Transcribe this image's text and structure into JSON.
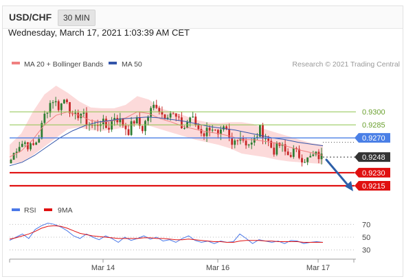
{
  "header": {
    "symbol": "USD/CHF",
    "timeframe": "30 MIN",
    "datetime": "Wednesday, March 17, 2021 1:03:39 AM CET"
  },
  "legend": {
    "ma20_label": "MA 20 + Bollinger Bands",
    "ma50_label": "MA 50",
    "credit": "Research © 2021 Trading Central",
    "rsi_label": "RSI",
    "nine_ma_label": "9MA"
  },
  "colors": {
    "up_candle": "#2e7d32",
    "down_candle": "#c62828",
    "bollinger_fill": "#fbd3d3",
    "ma20": "#f08080",
    "ma50": "#3355aa",
    "resistance": "#8bc34a",
    "pivot": "#4a7fe6",
    "support": "#e01010",
    "current": "#333333",
    "rsi": "#4a78e8",
    "nine_ma": "#e01010",
    "arrow": "#2d5fa8"
  },
  "chart_data": [
    {
      "type": "candlestick",
      "x_tick_labels": [
        "Mar 14",
        "Mar 16",
        "Mar 17"
      ],
      "ylim": [
        0.92,
        0.9345
      ],
      "price_levels": [
        {
          "role": "resistance",
          "value": 0.93,
          "label": "0.9300"
        },
        {
          "role": "resistance",
          "value": 0.9285,
          "label": "0.9285"
        },
        {
          "role": "pivot",
          "value": 0.927,
          "label": "0.9270"
        },
        {
          "role": "current",
          "value": 0.9248,
          "label": "0.9248"
        },
        {
          "role": "support",
          "value": 0.923,
          "label": "0.9230"
        },
        {
          "role": "support",
          "value": 0.9215,
          "label": "0.9215"
        }
      ],
      "close_path": [
        0.9245,
        0.9262,
        0.9265,
        0.9258,
        0.927,
        0.93,
        0.9315,
        0.9305,
        0.9318,
        0.929,
        0.93,
        0.9288,
        0.9282,
        0.929,
        0.928,
        0.9295,
        0.9288,
        0.9278,
        0.9292,
        0.928,
        0.9298,
        0.931,
        0.9296,
        0.93,
        0.9292,
        0.928,
        0.9295,
        0.9282,
        0.9275,
        0.9285,
        0.927,
        0.928,
        0.926,
        0.9275,
        0.9265,
        0.9262,
        0.928,
        0.927,
        0.9255,
        0.9262,
        0.925,
        0.9255,
        0.9248,
        0.9245,
        0.925,
        0.9248
      ],
      "ma20": [
        0.9248,
        0.9255,
        0.9268,
        0.9285,
        0.9296,
        0.93,
        0.9296,
        0.929,
        0.9288,
        0.929,
        0.9293,
        0.93,
        0.9298,
        0.9292,
        0.9288,
        0.9283,
        0.928,
        0.9277,
        0.9275,
        0.9272,
        0.9268,
        0.9268,
        0.9266,
        0.9264,
        0.926,
        0.9256,
        0.9253,
        0.925
      ],
      "bollinger_upper": [
        0.9262,
        0.9275,
        0.93,
        0.932,
        0.933,
        0.9322,
        0.9312,
        0.9305,
        0.9304,
        0.9304,
        0.9308,
        0.9318,
        0.9314,
        0.9304,
        0.93,
        0.9296,
        0.9291,
        0.9288,
        0.9287,
        0.9288,
        0.9288,
        0.9286,
        0.928,
        0.9276,
        0.9272,
        0.9268,
        0.9264,
        0.9262
      ],
      "bollinger_lower": [
        0.924,
        0.9242,
        0.925,
        0.926,
        0.927,
        0.928,
        0.9282,
        0.9279,
        0.9278,
        0.928,
        0.9282,
        0.9285,
        0.9284,
        0.928,
        0.9276,
        0.9272,
        0.9268,
        0.9265,
        0.9262,
        0.9258,
        0.9252,
        0.925,
        0.9248,
        0.9245,
        0.9243,
        0.9242,
        0.9241,
        0.924
      ],
      "ma50": [
        0.9238,
        0.9242,
        0.925,
        0.926,
        0.927,
        0.9278,
        0.9284,
        0.9288,
        0.929,
        0.9292,
        0.9293,
        0.9294,
        0.9293,
        0.9291,
        0.9289,
        0.9286,
        0.9283,
        0.9281,
        0.9279,
        0.9276,
        0.9273,
        0.927,
        0.9268,
        0.9265,
        0.9263,
        0.9261
      ]
    },
    {
      "type": "line",
      "title": "RSI",
      "ylim": [
        20,
        80
      ],
      "y_ticks": [
        70,
        50,
        30
      ],
      "series": [
        {
          "name": "RSI",
          "values": [
            45,
            50,
            55,
            48,
            62,
            68,
            72,
            70,
            66,
            60,
            52,
            48,
            55,
            50,
            46,
            52,
            48,
            42,
            50,
            45,
            48,
            52,
            47,
            50,
            44,
            46,
            42,
            48,
            52,
            45,
            42,
            44,
            40,
            44,
            42,
            43,
            55,
            48,
            40,
            46,
            44,
            42,
            44,
            40,
            45,
            44,
            40,
            42,
            43,
            42
          ]
        },
        {
          "name": "9MA",
          "values": [
            47,
            49,
            52,
            55,
            59,
            64,
            67,
            68,
            67,
            64,
            60,
            56,
            54,
            52,
            51,
            50,
            49,
            48,
            48,
            48,
            48,
            49,
            49,
            48,
            48,
            47,
            46,
            46,
            47,
            46,
            45,
            44,
            43,
            43,
            42,
            42,
            44,
            45,
            45,
            45,
            44,
            44,
            43,
            43,
            43,
            43,
            42,
            42,
            42,
            42
          ]
        }
      ]
    }
  ]
}
